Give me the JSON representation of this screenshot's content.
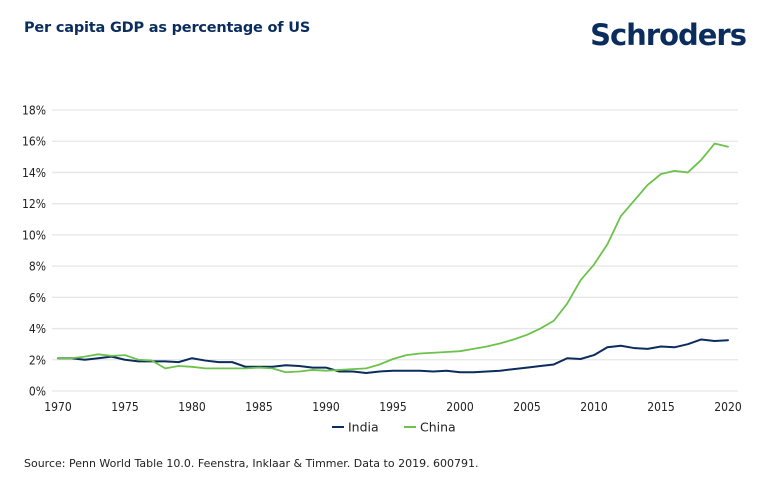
{
  "header": {
    "title": "Per capita GDP as percentage of US",
    "logo": "Schroders"
  },
  "footer": {
    "source": "Source: Penn World Table 10.0. Feenstra, Inklaar & Timmer. Data to 2019. 600791."
  },
  "colors": {
    "india": "#0b2d5e",
    "china": "#6cc24a",
    "grid": "#e6e6e6",
    "text": "#222222",
    "brand": "#0b2d5e"
  },
  "chart_data": {
    "type": "line",
    "title": "Per capita GDP as percentage of US",
    "xlabel": "",
    "ylabel": "",
    "xlim": [
      1970,
      2020
    ],
    "ylim": [
      0,
      18
    ],
    "grid": true,
    "legend_position": "bottom-center",
    "x_ticks": [
      "1970",
      "1975",
      "1980",
      "1985",
      "1990",
      "1995",
      "2000",
      "2005",
      "2010",
      "2015",
      "2020"
    ],
    "y_ticks": [
      "0%",
      "2%",
      "4%",
      "6%",
      "8%",
      "10%",
      "12%",
      "14%",
      "16%",
      "18%"
    ],
    "x": [
      1970,
      1971,
      1972,
      1973,
      1974,
      1975,
      1976,
      1977,
      1978,
      1979,
      1980,
      1981,
      1982,
      1983,
      1984,
      1985,
      1986,
      1987,
      1988,
      1989,
      1990,
      1991,
      1992,
      1993,
      1994,
      1995,
      1996,
      1997,
      1998,
      1999,
      2000,
      2001,
      2002,
      2003,
      2004,
      2005,
      2006,
      2007,
      2008,
      2009,
      2010,
      2011,
      2012,
      2013,
      2014,
      2015,
      2016,
      2017,
      2018,
      2019,
      2020
    ],
    "series": [
      {
        "name": "India",
        "color": "#0b2d5e",
        "values": [
          2.1,
          2.1,
          2.0,
          2.1,
          2.2,
          2.0,
          1.9,
          1.9,
          1.9,
          1.85,
          2.1,
          1.95,
          1.85,
          1.85,
          1.55,
          1.55,
          1.55,
          1.65,
          1.6,
          1.5,
          1.5,
          1.25,
          1.25,
          1.15,
          1.25,
          1.3,
          1.3,
          1.3,
          1.25,
          1.3,
          1.2,
          1.2,
          1.25,
          1.3,
          1.4,
          1.5,
          1.6,
          1.7,
          2.1,
          2.05,
          2.3,
          2.8,
          2.9,
          2.75,
          2.7,
          2.85,
          2.8,
          3.0,
          3.3,
          3.2,
          3.25
        ]
      },
      {
        "name": "China",
        "color": "#6cc24a",
        "values": [
          2.1,
          2.1,
          2.2,
          2.35,
          2.25,
          2.3,
          2.0,
          1.95,
          1.45,
          1.6,
          1.55,
          1.45,
          1.45,
          1.45,
          1.45,
          1.5,
          1.45,
          1.2,
          1.25,
          1.35,
          1.3,
          1.35,
          1.4,
          1.45,
          1.7,
          2.05,
          2.3,
          2.4,
          2.45,
          2.5,
          2.55,
          2.7,
          2.85,
          3.05,
          3.3,
          3.6,
          4.0,
          4.5,
          5.6,
          7.1,
          8.1,
          9.4,
          11.2,
          12.2,
          13.2,
          13.9,
          14.1,
          14.0,
          14.8,
          15.85,
          15.65
        ]
      }
    ]
  }
}
